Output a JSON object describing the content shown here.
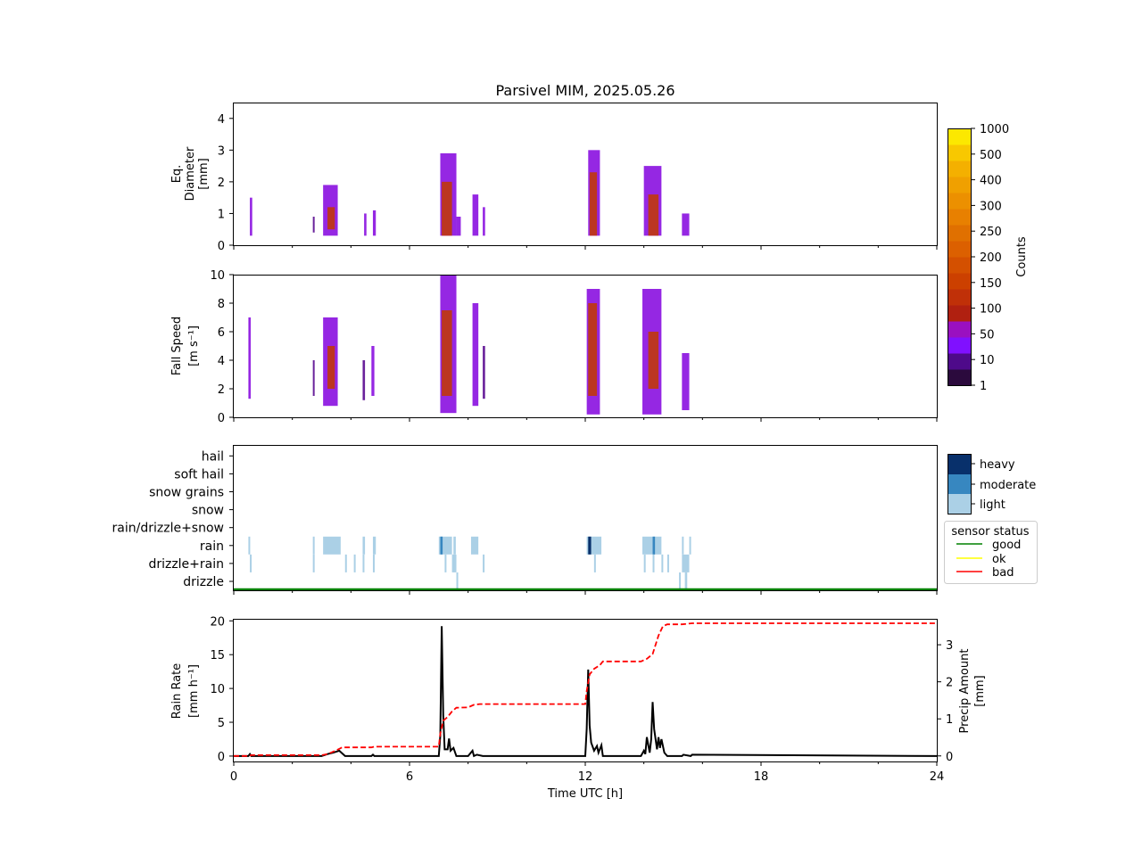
{
  "chart_data": [
    {
      "type": "heatmap",
      "title": "Parsivel MIM, 2025.05.26",
      "ylabel_lines": [
        "Eq.",
        "Diameter",
        "[mm]"
      ],
      "xlim": [
        0,
        24
      ],
      "ylim": [
        0,
        4.5
      ],
      "yticks": [
        0,
        1,
        2,
        3,
        4
      ],
      "blobs": [
        {
          "t": 0.55,
          "w": 0.08,
          "y0": 0.3,
          "y1": 1.5,
          "c": "#8a10e0"
        },
        {
          "t": 2.7,
          "w": 0.05,
          "y0": 0.4,
          "y1": 0.9,
          "c": "#5a0a90"
        },
        {
          "t": 3.05,
          "w": 0.5,
          "y0": 0.3,
          "y1": 1.9,
          "c": "#8a10e0"
        },
        {
          "t": 3.2,
          "w": 0.25,
          "y0": 0.5,
          "y1": 1.2,
          "c": "#c0390b"
        },
        {
          "t": 4.45,
          "w": 0.08,
          "y0": 0.3,
          "y1": 1.0,
          "c": "#8a10e0"
        },
        {
          "t": 4.75,
          "w": 0.1,
          "y0": 0.3,
          "y1": 1.1,
          "c": "#8a10e0"
        },
        {
          "t": 7.05,
          "w": 0.55,
          "y0": 0.3,
          "y1": 2.9,
          "c": "#8a10e0"
        },
        {
          "t": 7.1,
          "w": 0.35,
          "y0": 0.3,
          "y1": 2.0,
          "c": "#c0390b"
        },
        {
          "t": 7.6,
          "w": 0.15,
          "y0": 0.3,
          "y1": 0.9,
          "c": "#8a10e0"
        },
        {
          "t": 8.15,
          "w": 0.2,
          "y0": 0.3,
          "y1": 1.6,
          "c": "#8a10e0"
        },
        {
          "t": 8.5,
          "w": 0.08,
          "y0": 0.3,
          "y1": 1.2,
          "c": "#8a10e0"
        },
        {
          "t": 12.1,
          "w": 0.4,
          "y0": 0.3,
          "y1": 3.0,
          "c": "#8a10e0"
        },
        {
          "t": 12.15,
          "w": 0.25,
          "y0": 0.3,
          "y1": 2.3,
          "c": "#c0390b"
        },
        {
          "t": 14.0,
          "w": 0.6,
          "y0": 0.3,
          "y1": 2.5,
          "c": "#8a10e0"
        },
        {
          "t": 14.15,
          "w": 0.35,
          "y0": 0.3,
          "y1": 1.6,
          "c": "#c0390b"
        },
        {
          "t": 15.3,
          "w": 0.25,
          "y0": 0.3,
          "y1": 1.0,
          "c": "#8a10e0"
        }
      ]
    },
    {
      "type": "heatmap",
      "ylabel_lines": [
        "Fall Speed",
        "[m s⁻¹]"
      ],
      "xlim": [
        0,
        24
      ],
      "ylim": [
        0,
        10
      ],
      "yticks": [
        0,
        2,
        4,
        6,
        8,
        10
      ],
      "blobs": [
        {
          "t": 0.5,
          "w": 0.08,
          "y0": 1.3,
          "y1": 7.0,
          "c": "#8a10e0"
        },
        {
          "t": 2.7,
          "w": 0.05,
          "y0": 1.5,
          "y1": 4.0,
          "c": "#5a0a90"
        },
        {
          "t": 3.05,
          "w": 0.5,
          "y0": 0.8,
          "y1": 7.0,
          "c": "#8a10e0"
        },
        {
          "t": 3.2,
          "w": 0.25,
          "y0": 2.0,
          "y1": 5.0,
          "c": "#c0390b"
        },
        {
          "t": 4.4,
          "w": 0.08,
          "y0": 1.2,
          "y1": 4.0,
          "c": "#5a0a90"
        },
        {
          "t": 4.7,
          "w": 0.1,
          "y0": 1.5,
          "y1": 5.0,
          "c": "#8a10e0"
        },
        {
          "t": 7.05,
          "w": 0.55,
          "y0": 0.3,
          "y1": 10.0,
          "c": "#8a10e0"
        },
        {
          "t": 7.1,
          "w": 0.35,
          "y0": 1.5,
          "y1": 7.5,
          "c": "#c0390b"
        },
        {
          "t": 8.15,
          "w": 0.2,
          "y0": 0.8,
          "y1": 8.0,
          "c": "#8a10e0"
        },
        {
          "t": 8.5,
          "w": 0.08,
          "y0": 1.3,
          "y1": 5.0,
          "c": "#5a0a90"
        },
        {
          "t": 12.05,
          "w": 0.45,
          "y0": 0.2,
          "y1": 9.0,
          "c": "#8a10e0"
        },
        {
          "t": 12.1,
          "w": 0.3,
          "y0": 1.5,
          "y1": 8.0,
          "c": "#c0390b"
        },
        {
          "t": 13.95,
          "w": 0.65,
          "y0": 0.2,
          "y1": 9.0,
          "c": "#8a10e0"
        },
        {
          "t": 14.15,
          "w": 0.35,
          "y0": 2.0,
          "y1": 6.0,
          "c": "#c0390b"
        },
        {
          "t": 15.3,
          "w": 0.25,
          "y0": 0.5,
          "y1": 4.5,
          "c": "#8a10e0"
        }
      ]
    },
    {
      "type": "heatmap",
      "categories": [
        "drizzle",
        "drizzle+rain",
        "rain",
        "rain/drizzle+snow",
        "snow",
        "snow grains",
        "soft hail",
        "hail"
      ],
      "xlim": [
        0,
        24
      ],
      "intensity_legend": [
        "heavy",
        "moderate",
        "light"
      ],
      "intensity_colors": [
        "#08306b",
        "#3787c0",
        "#abd0e6"
      ],
      "status_legend_title": "sensor status",
      "status_legend": [
        {
          "label": "good",
          "color": "#008000"
        },
        {
          "label": "ok",
          "color": "#ffff00"
        },
        {
          "label": "bad",
          "color": "#ff0000"
        }
      ],
      "status_line": "good",
      "cells": [
        {
          "t": 0.5,
          "w": 0.06,
          "row": 2,
          "i": 2
        },
        {
          "t": 0.55,
          "w": 0.06,
          "row": 1,
          "i": 2
        },
        {
          "t": 2.7,
          "w": 0.05,
          "row": 2,
          "i": 2
        },
        {
          "t": 2.7,
          "w": 0.05,
          "row": 1,
          "i": 2
        },
        {
          "t": 3.05,
          "w": 0.6,
          "row": 2,
          "i": 2
        },
        {
          "t": 3.8,
          "w": 0.06,
          "row": 1,
          "i": 2
        },
        {
          "t": 4.1,
          "w": 0.06,
          "row": 1,
          "i": 2
        },
        {
          "t": 4.4,
          "w": 0.08,
          "row": 2,
          "i": 2
        },
        {
          "t": 4.4,
          "w": 0.06,
          "row": 1,
          "i": 2
        },
        {
          "t": 4.75,
          "w": 0.1,
          "row": 2,
          "i": 2
        },
        {
          "t": 4.75,
          "w": 0.06,
          "row": 1,
          "i": 2
        },
        {
          "t": 7.0,
          "w": 0.45,
          "row": 2,
          "i": 2
        },
        {
          "t": 7.05,
          "w": 0.08,
          "row": 2,
          "i": 1
        },
        {
          "t": 7.2,
          "w": 0.06,
          "row": 1,
          "i": 2
        },
        {
          "t": 7.45,
          "w": 0.15,
          "row": 1,
          "i": 2
        },
        {
          "t": 7.5,
          "w": 0.08,
          "row": 2,
          "i": 2
        },
        {
          "t": 7.6,
          "w": 0.06,
          "row": 0,
          "i": 2
        },
        {
          "t": 8.1,
          "w": 0.25,
          "row": 2,
          "i": 2
        },
        {
          "t": 8.5,
          "w": 0.06,
          "row": 1,
          "i": 2
        },
        {
          "t": 12.05,
          "w": 0.5,
          "row": 2,
          "i": 2
        },
        {
          "t": 12.1,
          "w": 0.1,
          "row": 2,
          "i": 0
        },
        {
          "t": 12.3,
          "w": 0.06,
          "row": 1,
          "i": 2
        },
        {
          "t": 13.95,
          "w": 0.65,
          "row": 2,
          "i": 2
        },
        {
          "t": 14.3,
          "w": 0.08,
          "row": 2,
          "i": 1
        },
        {
          "t": 14.0,
          "w": 0.06,
          "row": 1,
          "i": 2
        },
        {
          "t": 14.3,
          "w": 0.06,
          "row": 1,
          "i": 2
        },
        {
          "t": 14.6,
          "w": 0.06,
          "row": 1,
          "i": 2
        },
        {
          "t": 14.8,
          "w": 0.06,
          "row": 1,
          "i": 2
        },
        {
          "t": 15.3,
          "w": 0.06,
          "row": 2,
          "i": 2
        },
        {
          "t": 15.55,
          "w": 0.06,
          "row": 2,
          "i": 2
        },
        {
          "t": 15.3,
          "w": 0.25,
          "row": 1,
          "i": 2
        },
        {
          "t": 15.2,
          "w": 0.06,
          "row": 0,
          "i": 2
        },
        {
          "t": 15.4,
          "w": 0.08,
          "row": 0,
          "i": 2
        }
      ]
    },
    {
      "type": "line",
      "xlabel": "Time UTC [h]",
      "ylabel_lines": [
        "Rain Rate",
        "[mm h⁻¹]"
      ],
      "ylabel2_lines": [
        "Precip Amount",
        "[mm]"
      ],
      "xlim": [
        0,
        24
      ],
      "xticks": [
        0,
        6,
        12,
        18,
        24
      ],
      "ylim": [
        -0.8,
        20.3
      ],
      "yticks": [
        0,
        5,
        10,
        15,
        20
      ],
      "y2lim": [
        -0.15,
        3.7
      ],
      "y2ticks": [
        0,
        1,
        2,
        3
      ],
      "series": [
        {
          "label": "rain rate",
          "color": "#000000",
          "style": "solid",
          "x": [
            0,
            0.5,
            0.55,
            0.6,
            3.0,
            3.2,
            3.4,
            3.6,
            3.8,
            4.7,
            4.75,
            4.8,
            7.0,
            7.05,
            7.1,
            7.15,
            7.2,
            7.3,
            7.35,
            7.4,
            7.5,
            7.6,
            8.0,
            8.15,
            8.2,
            8.3,
            8.5,
            12.0,
            12.05,
            12.1,
            12.15,
            12.2,
            12.3,
            12.4,
            12.45,
            12.55,
            12.6,
            13.9,
            14.0,
            14.05,
            14.1,
            14.2,
            14.25,
            14.3,
            14.35,
            14.45,
            14.5,
            14.55,
            14.6,
            14.7,
            14.8,
            15.3,
            15.35,
            15.6,
            15.65,
            24
          ],
          "y": [
            0,
            0,
            0.3,
            0,
            0,
            0.3,
            0.5,
            0.8,
            0,
            0,
            0.2,
            0,
            0,
            3.0,
            19.2,
            6.0,
            1.0,
            1.0,
            2.6,
            0.8,
            1.2,
            0,
            0,
            0.8,
            0,
            0.2,
            0,
            0,
            4.0,
            12.8,
            4.5,
            2.0,
            0.8,
            1.5,
            0.5,
            1.6,
            0,
            0,
            0.8,
            0.3,
            2.8,
            0.5,
            2.5,
            8.0,
            4.0,
            1.0,
            2.8,
            1.2,
            2.5,
            0.5,
            0,
            0,
            0.2,
            0,
            0.2,
            0
          ]
        },
        {
          "label": "precip amount",
          "color": "#ff0000",
          "style": "dashed",
          "axis": "right",
          "x": [
            0,
            0.5,
            0.6,
            3.0,
            3.2,
            3.5,
            3.7,
            4.7,
            4.8,
            7.0,
            7.05,
            7.15,
            7.3,
            7.45,
            7.6,
            8.0,
            8.2,
            8.4,
            12.0,
            12.05,
            12.15,
            12.3,
            12.5,
            12.6,
            13.9,
            14.1,
            14.3,
            14.4,
            14.5,
            14.65,
            14.8,
            15.3,
            15.65,
            24
          ],
          "y": [
            0,
            0,
            0.02,
            0.02,
            0.05,
            0.15,
            0.23,
            0.23,
            0.25,
            0.25,
            0.6,
            0.95,
            1.05,
            1.2,
            1.3,
            1.31,
            1.38,
            1.4,
            1.4,
            1.75,
            2.2,
            2.35,
            2.45,
            2.55,
            2.55,
            2.62,
            2.75,
            3.0,
            3.25,
            3.5,
            3.55,
            3.55,
            3.58,
            3.58
          ]
        }
      ]
    }
  ],
  "colorbar": {
    "label": "Counts",
    "ticks": [
      "1",
      "10",
      "50",
      "100",
      "150",
      "200",
      "250",
      "300",
      "400",
      "500",
      "1000"
    ],
    "colors": [
      "#2b0a3d",
      "#4e0a8a",
      "#8010ff",
      "#9a10c0",
      "#b02010",
      "#c03008",
      "#cc4000",
      "#d45000",
      "#dc6000",
      "#e07000",
      "#e88000",
      "#ec9000",
      "#f0a000",
      "#f4b000",
      "#f8c800",
      "#fce800"
    ]
  }
}
